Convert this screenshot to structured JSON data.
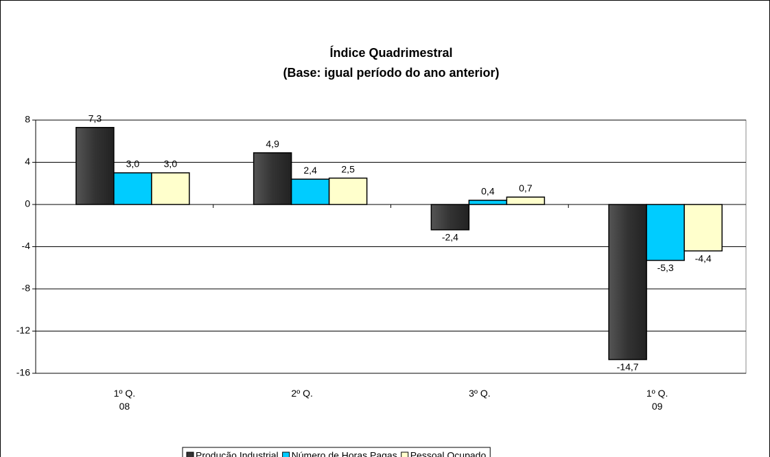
{
  "chart_data": {
    "type": "bar",
    "title": "Índice Quadrimestral",
    "subtitle": "(Base: igual período do ano anterior)",
    "categories": [
      "1º Q.\n08",
      "2º Q.",
      "3º Q.",
      "1º Q.\n09"
    ],
    "series": [
      {
        "name": "Produção Industrial",
        "color": "#333333",
        "values": [
          7.3,
          4.9,
          -2.4,
          -14.7
        ],
        "value_labels": [
          "7,3",
          "4,9",
          "-2,4",
          "-14,7"
        ]
      },
      {
        "name": "Número de Horas Pagas",
        "color": "#00ccff",
        "values": [
          3.0,
          2.4,
          0.4,
          -5.3
        ],
        "value_labels": [
          "3,0",
          "2,4",
          "0,4",
          "-5,3"
        ]
      },
      {
        "name": "Pessoal Ocupado",
        "color": "#ffffcc",
        "values": [
          3.0,
          2.5,
          0.7,
          -4.4
        ],
        "value_labels": [
          "3,0",
          "2,5",
          "0,7",
          "-4,4"
        ]
      }
    ],
    "ylim": [
      -16,
      8
    ],
    "yticks": [
      -16,
      -12,
      -8,
      -4,
      0,
      4,
      8
    ],
    "grid": true,
    "legend": "bottom"
  }
}
